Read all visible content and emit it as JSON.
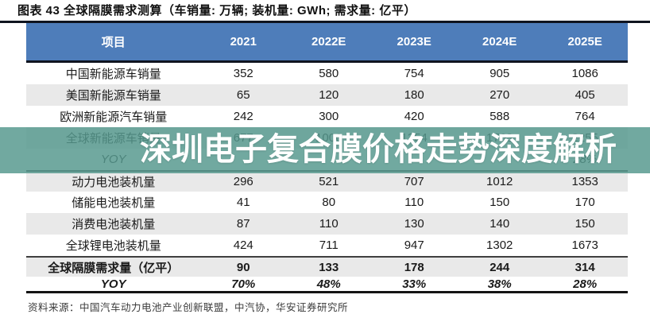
{
  "title": "图表 43 全球隔膜需求测算（车销量: 万辆; 装机量: GWh; 需求量: 亿平）",
  "watermark": "深圳电子复合膜价格走势深度解析",
  "source": "资料来源：中国汽车动力电池产业创新联盟，中汽协，华安证券研究所",
  "colors": {
    "header_bg": "#4e7dba",
    "header_text": "#ffffff",
    "row_alt_bg": "#e9e9e9",
    "watermark_band": "rgba(86,152,142,0.84)",
    "watermark_text": "#ffffff",
    "rule_dark": "#10151f"
  },
  "table": {
    "headers": [
      "项目",
      "2021",
      "2022E",
      "2023E",
      "2024E",
      "2025E"
    ],
    "rows": [
      {
        "label": "中国新能源车销量",
        "values": [
          "352",
          "580",
          "754",
          "905",
          "1086"
        ]
      },
      {
        "label": "美国新能源车销量",
        "values": [
          "65",
          "120",
          "180",
          "270",
          "405"
        ]
      },
      {
        "label": "欧洲新能源汽车销量",
        "values": [
          "242",
          "300",
          "420",
          "588",
          "764"
        ]
      },
      {
        "label": "全球新能源车销量",
        "values": [
          "677",
          "1000",
          "1354",
          "1763",
          "2255"
        ]
      },
      {
        "label": "YOY",
        "values": [
          "",
          "",
          "",
          "",
          "28%"
        ]
      },
      {
        "label": "动力电池装机量",
        "values": [
          "296",
          "521",
          "707",
          "1012",
          "1353"
        ]
      },
      {
        "label": "储能电池装机量",
        "values": [
          "41",
          "80",
          "110",
          "150",
          "170"
        ]
      },
      {
        "label": "消费电池装机量",
        "values": [
          "87",
          "110",
          "130",
          "140",
          "150"
        ]
      },
      {
        "label": "全球锂电池装机量",
        "values": [
          "424",
          "711",
          "947",
          "1302",
          "1673"
        ]
      },
      {
        "label": "全球隔膜需求量（亿平）",
        "values": [
          "90",
          "133",
          "178",
          "244",
          "314"
        ]
      },
      {
        "label": "YOY",
        "values": [
          "70%",
          "48%",
          "33%",
          "38%",
          "28%"
        ]
      }
    ]
  }
}
